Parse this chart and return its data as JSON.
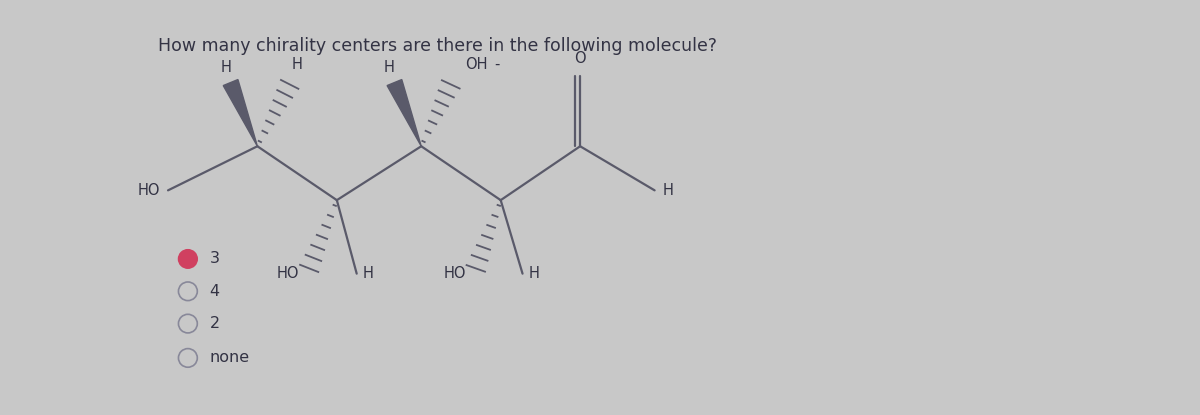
{
  "title": "How many chirality centers are there in the following molecule?",
  "bg_color": "#c8c8c8",
  "panel_color": "#e0e0e0",
  "line_color": "#555566",
  "text_color": "#333344",
  "radio_options": [
    "3",
    "4",
    "2",
    "none"
  ],
  "radio_selected": 0,
  "mol_line_color": "#5a5a6a",
  "mol_text_color": "#333344",
  "title_fontsize": 12.5,
  "mol_fontsize": 10.5,
  "radio_fontsize": 11.5,
  "selected_radio_color": "#d04060",
  "unselected_radio_color": "#888899"
}
